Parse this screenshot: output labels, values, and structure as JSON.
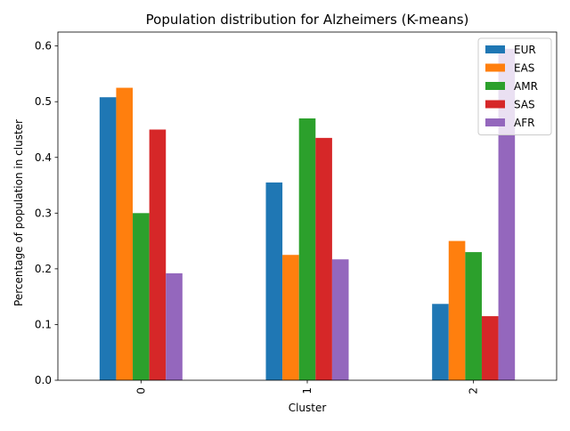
{
  "chart_data": {
    "type": "bar",
    "title": "Population distribution for Alzheimers (K-means)",
    "xlabel": "Cluster",
    "ylabel": "Percentage of population in cluster",
    "categories": [
      "0",
      "1",
      "2"
    ],
    "ylim": [
      0,
      0.625
    ],
    "yticks": [
      "0.0",
      "0.1",
      "0.2",
      "0.3",
      "0.4",
      "0.5",
      "0.6"
    ],
    "grid": false,
    "legend_position": "top-right",
    "series": [
      {
        "name": "EUR",
        "color": "#1f77b4",
        "values": [
          0.508,
          0.355,
          0.137
        ]
      },
      {
        "name": "EAS",
        "color": "#ff7f0e",
        "values": [
          0.525,
          0.225,
          0.25
        ]
      },
      {
        "name": "AMR",
        "color": "#2ca02c",
        "values": [
          0.3,
          0.47,
          0.23
        ]
      },
      {
        "name": "SAS",
        "color": "#d62728",
        "values": [
          0.45,
          0.435,
          0.115
        ]
      },
      {
        "name": "AFR",
        "color": "#9467bd",
        "values": [
          0.192,
          0.217,
          0.595
        ]
      }
    ]
  }
}
